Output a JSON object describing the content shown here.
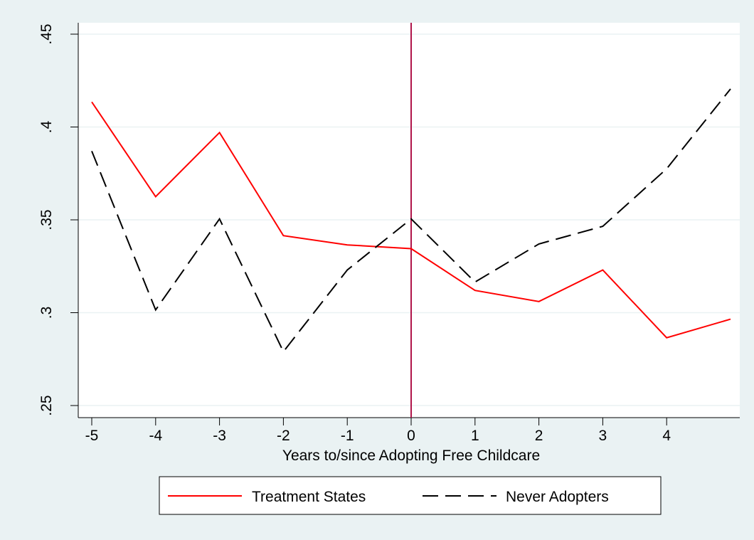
{
  "chart_data": {
    "type": "line",
    "title": "",
    "xlabel": "Years to/since Adopting Free Childcare",
    "ylabel": "",
    "x": [
      -5,
      -4,
      -3,
      -2,
      -1,
      0,
      1,
      2,
      3,
      4,
      5
    ],
    "xticks": [
      -5,
      -4,
      -3,
      -2,
      -1,
      0,
      1,
      2,
      3,
      4
    ],
    "xlim": [
      -5,
      5
    ],
    "ylim": [
      0.25,
      0.45
    ],
    "yticks": [
      {
        "value": 0.25,
        "label": ".25"
      },
      {
        "value": 0.3,
        "label": ".3"
      },
      {
        "value": 0.35,
        "label": ".35"
      },
      {
        "value": 0.4,
        "label": ".4"
      },
      {
        "value": 0.45,
        "label": ".45"
      }
    ],
    "grid": true,
    "vline": {
      "x": 0,
      "color": "#b0154a"
    },
    "legend_position": "bottom",
    "series": [
      {
        "name": "Treatment States",
        "color": "#ff0000",
        "dash": "solid",
        "values": [
          0.4135,
          0.3625,
          0.397,
          0.3415,
          0.3365,
          0.3345,
          0.312,
          0.306,
          0.323,
          0.2865,
          0.2965
        ]
      },
      {
        "name": "Never Adopters",
        "color": "#000000",
        "dash": "long-dash",
        "values": [
          0.387,
          0.3015,
          0.3505,
          0.279,
          0.323,
          0.3505,
          0.3165,
          0.337,
          0.3465,
          0.3775,
          0.4205
        ]
      }
    ]
  },
  "colors": {
    "background": "#eaf2f3",
    "plot_background": "#ffffff",
    "grid": "#eaf2f3"
  }
}
